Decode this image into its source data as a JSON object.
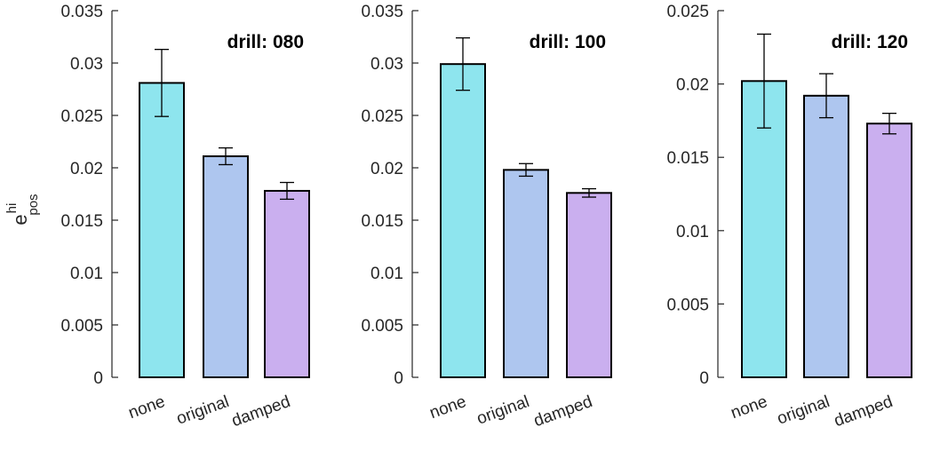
{
  "ylabel": {
    "base": "e",
    "sup": "hi",
    "sub": "pos"
  },
  "colors": {
    "axis": "#262626",
    "bar_edge": "#000000",
    "none": "#8EE5EE",
    "original": "#AEC6EF",
    "damped": "#CAAFEF"
  },
  "chart_data": [
    {
      "type": "bar",
      "title": "drill: 080",
      "categories": [
        "none",
        "original",
        "damped"
      ],
      "values": [
        0.0281,
        0.0211,
        0.0178
      ],
      "errors_low": [
        0.0032,
        0.0008,
        0.0008
      ],
      "errors_high": [
        0.0032,
        0.0008,
        0.0008
      ],
      "ylim": [
        0,
        0.035
      ],
      "yticks": [
        0,
        0.005,
        0.01,
        0.015,
        0.02,
        0.025,
        0.03,
        0.035
      ],
      "ytick_labels": [
        "0",
        "0.005",
        "0.01",
        "0.015",
        "0.02",
        "0.025",
        "0.03",
        "0.035"
      ],
      "xlabel": "",
      "ylabel": "e_pos^hi"
    },
    {
      "type": "bar",
      "title": "drill: 100",
      "categories": [
        "none",
        "original",
        "damped"
      ],
      "values": [
        0.0299,
        0.0198,
        0.0176
      ],
      "errors_low": [
        0.0025,
        0.0006,
        0.0004
      ],
      "errors_high": [
        0.0025,
        0.0006,
        0.0004
      ],
      "ylim": [
        0,
        0.035
      ],
      "yticks": [
        0,
        0.005,
        0.01,
        0.015,
        0.02,
        0.025,
        0.03,
        0.035
      ],
      "ytick_labels": [
        "0",
        "0.005",
        "0.01",
        "0.015",
        "0.02",
        "0.025",
        "0.03",
        "0.035"
      ],
      "xlabel": "",
      "ylabel": ""
    },
    {
      "type": "bar",
      "title": "drill: 120",
      "categories": [
        "none",
        "original",
        "damped"
      ],
      "values": [
        0.0202,
        0.0192,
        0.0173
      ],
      "errors_low": [
        0.0032,
        0.0015,
        0.0007
      ],
      "errors_high": [
        0.0032,
        0.0015,
        0.0007
      ],
      "ylim": [
        0,
        0.025
      ],
      "yticks": [
        0,
        0.005,
        0.01,
        0.015,
        0.02,
        0.025
      ],
      "ytick_labels": [
        "0",
        "0.005",
        "0.01",
        "0.015",
        "0.02",
        "0.025"
      ],
      "xlabel": "",
      "ylabel": ""
    }
  ]
}
